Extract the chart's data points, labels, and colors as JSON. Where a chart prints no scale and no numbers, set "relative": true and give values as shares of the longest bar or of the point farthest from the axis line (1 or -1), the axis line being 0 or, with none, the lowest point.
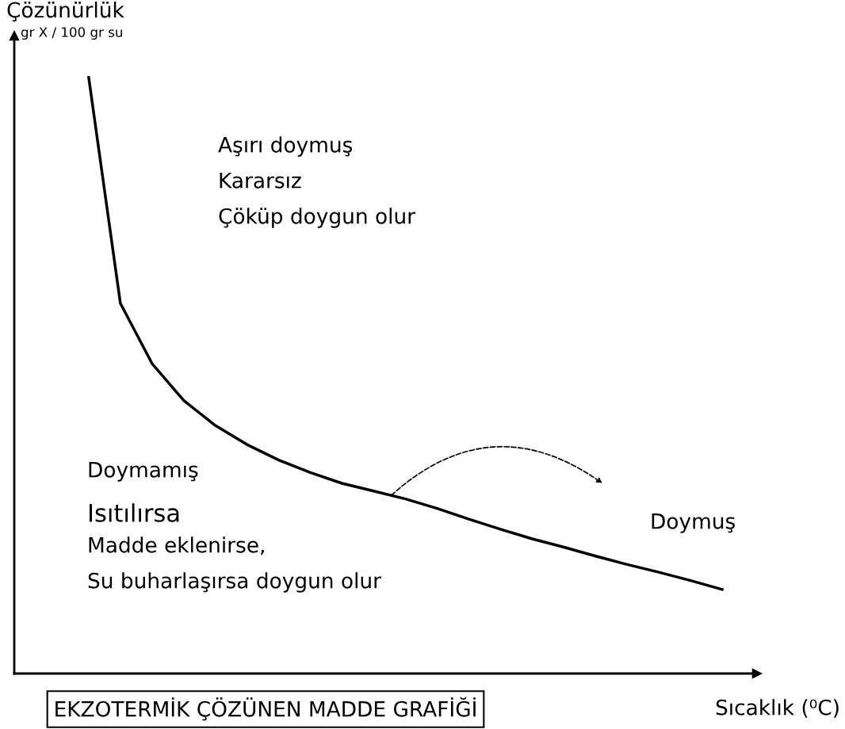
{
  "chart_data": {
    "type": "line",
    "relative": true,
    "title": "EKZOTERMİK ÇÖZÜNEN MADDE GRAFİĞİ",
    "ylabel": "Çözünürlük",
    "xlabel": "Sıcaklık (⁰C)",
    "color": "#000000",
    "grid": false,
    "legend": false,
    "marker": "none",
    "line_style": "solid",
    "categories": [
      null,
      null,
      null,
      null,
      null,
      null,
      null,
      null,
      null,
      null,
      null,
      null,
      null,
      null,
      null,
      null,
      null,
      null,
      null,
      null,
      null
    ],
    "values": [
      1.0,
      0.621,
      0.52,
      0.458,
      0.416,
      0.384,
      0.358,
      0.337,
      0.319,
      0.306,
      0.293,
      0.277,
      0.259,
      0.242,
      0.226,
      0.212,
      0.197,
      0.183,
      0.17,
      0.156,
      0.141
    ],
    "annotations": [
      "gr X / 100 gr su",
      "Aşırı doymuş",
      "Kararsız",
      "Çöküp doygun olur",
      "Doymamış",
      "Isıtılırsa",
      "Madde eklenirse,",
      "Su buharlaşırsa doygun olur",
      "Doymuş"
    ]
  }
}
